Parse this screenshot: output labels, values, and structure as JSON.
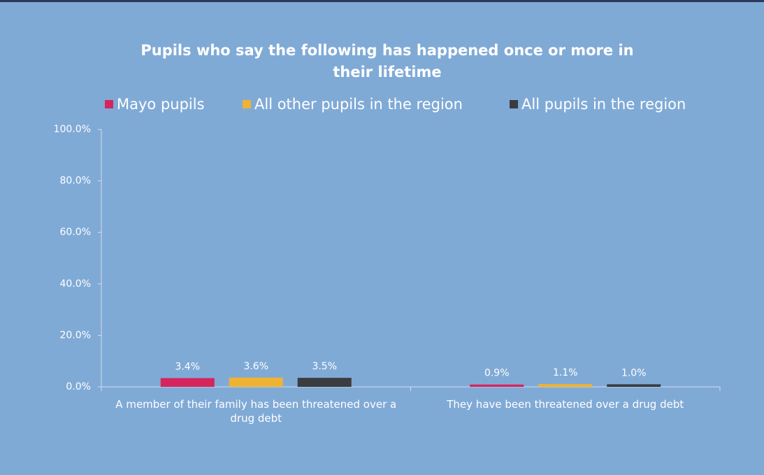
{
  "chart_data": {
    "type": "bar",
    "title": "Pupils who say the following has happened once or more in their lifetime",
    "categories": [
      "A member of their family has been threatened over a drug debt",
      "They have been threatened over a drug debt"
    ],
    "series": [
      {
        "name": "Mayo pupils",
        "color": "#d6245e",
        "values": [
          3.4,
          0.9
        ],
        "value_labels": [
          "3.4%",
          "0.9%"
        ]
      },
      {
        "name": "All other pupils in the region",
        "color": "#f0b232",
        "values": [
          3.6,
          1.1
        ],
        "value_labels": [
          "3.6%",
          "1.1%"
        ]
      },
      {
        "name": "All pupils in the region",
        "color": "#3a3c40",
        "values": [
          3.5,
          1.0
        ],
        "value_labels": [
          "3.5%",
          "1.0%"
        ]
      }
    ],
    "ylim": [
      0,
      100
    ],
    "yticks": [
      {
        "value": 0,
        "label": "0.0%"
      },
      {
        "value": 20,
        "label": "20.0%"
      },
      {
        "value": 40,
        "label": "40.0%"
      },
      {
        "value": 60,
        "label": "60.0%"
      },
      {
        "value": 80,
        "label": "80.0%"
      },
      {
        "value": 100,
        "label": "100.0%"
      }
    ],
    "legend": "top"
  }
}
